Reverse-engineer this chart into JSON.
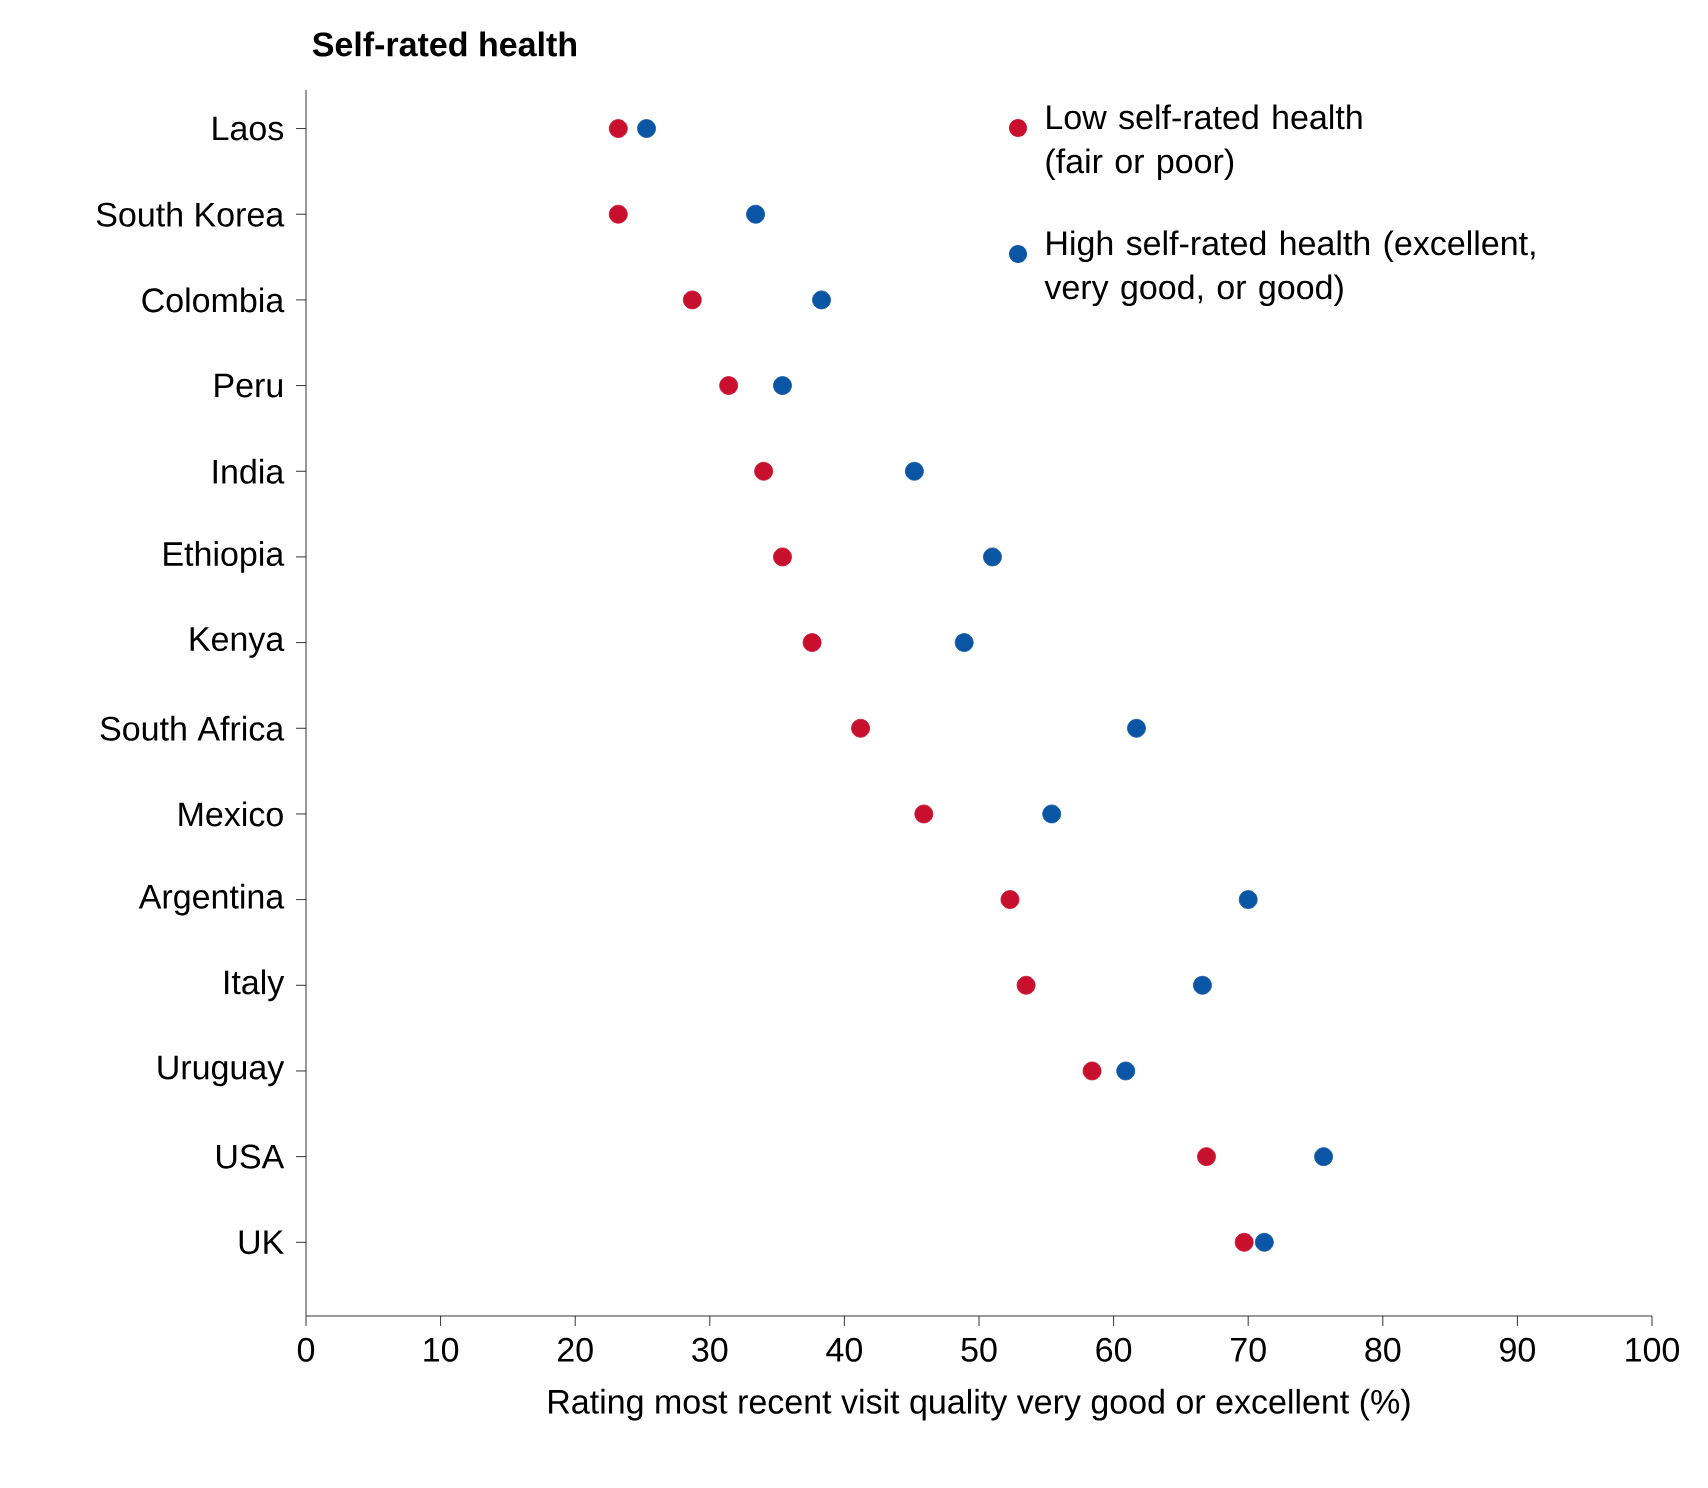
{
  "chart_data": {
    "type": "scatter",
    "orientation": "horizontal",
    "title": "Self-rated health",
    "xlabel": "Rating most recent visit quality very good or excellent (%)",
    "categories": [
      "Laos",
      "South Korea",
      "Colombia",
      "Peru",
      "India",
      "Ethiopia",
      "Kenya",
      "South Africa",
      "Mexico",
      "Argentina",
      "Italy",
      "Uruguay",
      "USA",
      "UK"
    ],
    "xlim": [
      0,
      100
    ],
    "xticks": [
      0,
      10,
      20,
      30,
      40,
      50,
      60,
      70,
      80,
      90,
      100
    ],
    "legend": "top right",
    "marker": "circle",
    "series": [
      {
        "name": "Low self-rated health (fair or poor)",
        "color": "#c8102e",
        "values": [
          23.2,
          23.2,
          28.7,
          31.4,
          34.0,
          35.4,
          37.6,
          41.2,
          45.9,
          52.3,
          53.5,
          58.4,
          66.9,
          69.7
        ]
      },
      {
        "name": "High self-rated health (excellent, very good, or good)",
        "color": "#0b56a4",
        "values": [
          25.3,
          33.4,
          38.3,
          35.4,
          45.2,
          51.0,
          48.9,
          61.7,
          55.4,
          70.0,
          66.6,
          60.9,
          75.6,
          71.2
        ]
      }
    ]
  }
}
